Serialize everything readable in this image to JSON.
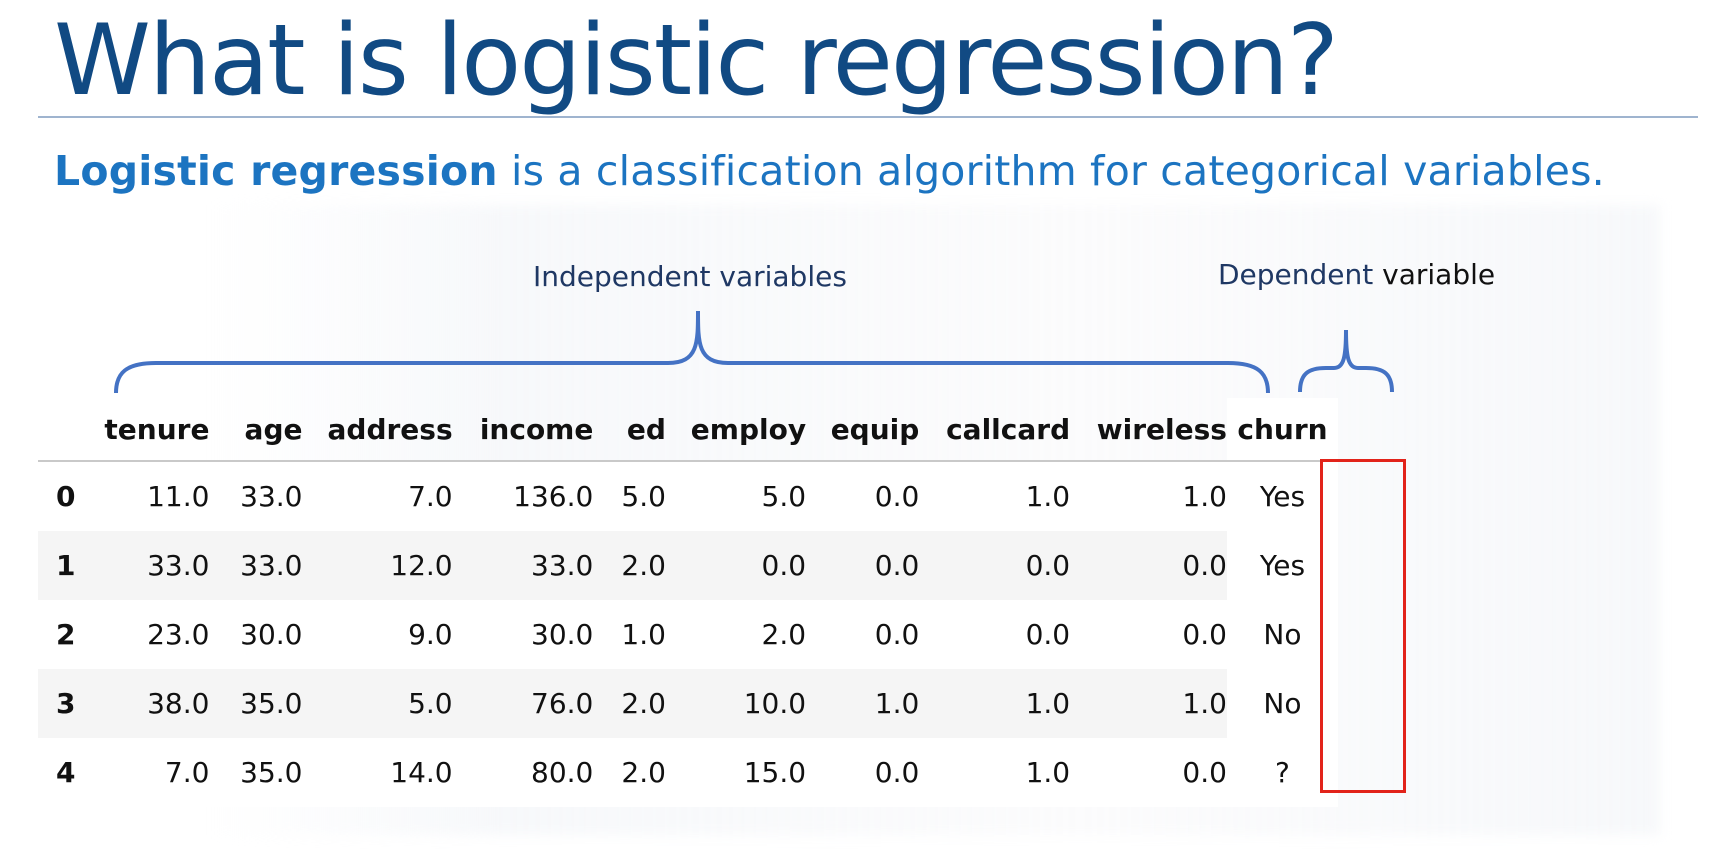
{
  "slide": {
    "title": "What is logistic regression?",
    "subtitle_bold": "Logistic regression",
    "subtitle_rest": " is a classification algorithm for categorical variables.",
    "independent_label": "Independent variables",
    "dependent_label_part1": "Dependent",
    "dependent_label_part2": " variable"
  },
  "table": {
    "columns": [
      "tenure",
      "age",
      "address",
      "income",
      "ed",
      "employ",
      "equip",
      "callcard",
      "wireless",
      "churn"
    ],
    "rows": [
      {
        "index": "0",
        "tenure": "11.0",
        "age": "33.0",
        "address": "7.0",
        "income": "136.0",
        "ed": "5.0",
        "employ": "5.0",
        "equip": "0.0",
        "callcard": "1.0",
        "wireless": "1.0",
        "churn": "Yes"
      },
      {
        "index": "1",
        "tenure": "33.0",
        "age": "33.0",
        "address": "12.0",
        "income": "33.0",
        "ed": "2.0",
        "employ": "0.0",
        "equip": "0.0",
        "callcard": "0.0",
        "wireless": "0.0",
        "churn": "Yes"
      },
      {
        "index": "2",
        "tenure": "23.0",
        "age": "30.0",
        "address": "9.0",
        "income": "30.0",
        "ed": "1.0",
        "employ": "2.0",
        "equip": "0.0",
        "callcard": "0.0",
        "wireless": "0.0",
        "churn": "No"
      },
      {
        "index": "3",
        "tenure": "38.0",
        "age": "35.0",
        "address": "5.0",
        "income": "76.0",
        "ed": "2.0",
        "employ": "10.0",
        "equip": "1.0",
        "callcard": "1.0",
        "wireless": "1.0",
        "churn": "No"
      },
      {
        "index": "4",
        "tenure": "7.0",
        "age": "35.0",
        "address": "14.0",
        "income": "80.0",
        "ed": "2.0",
        "employ": "15.0",
        "equip": "0.0",
        "callcard": "1.0",
        "wireless": "0.0",
        "churn": "?"
      }
    ]
  },
  "colors": {
    "title": "#114a83",
    "subtitle": "#1c74c1",
    "brace": "#4472c4",
    "highlight_box": "#e2231a"
  }
}
